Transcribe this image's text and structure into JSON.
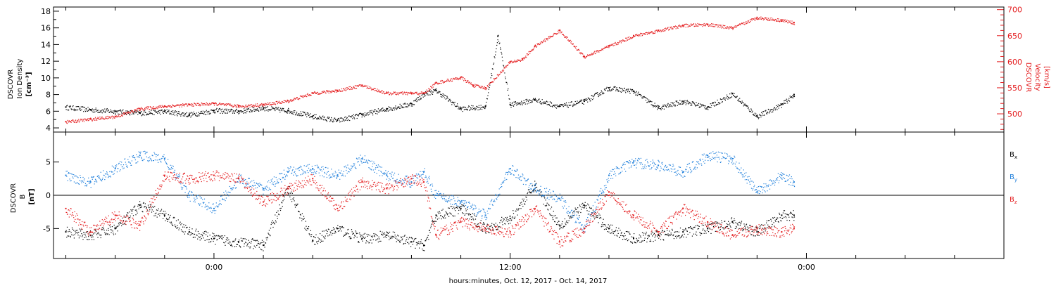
{
  "chart_data": [
    {
      "type": "scatter",
      "panel": "top",
      "left_axis": {
        "label_lines": [
          "DSCOVR",
          "Ion Density",
          "[cm⁻³]"
        ],
        "ticks": [
          4,
          6,
          8,
          10,
          12,
          14,
          16,
          18
        ],
        "tick_labels": [
          "4",
          "6",
          "8",
          "10",
          "12",
          "14",
          "16",
          "18"
        ],
        "ylim": [
          3.5,
          18.5
        ]
      },
      "right_axis": {
        "label_lines": [
          "DSCOVR",
          "Velocity",
          "[km/s]"
        ],
        "ticks": [
          500,
          550,
          600,
          650,
          700
        ],
        "tick_labels": [
          "500",
          "550",
          "600",
          "650",
          "700"
        ],
        "ylim": [
          465,
          705
        ],
        "color": "#e41a1c"
      },
      "series": [
        {
          "name": "",
          "color": "#000000",
          "axis": "left",
          "x": [
            -6,
            -5,
            -4,
            -3,
            -2,
            -1,
            0,
            1,
            2,
            3,
            4,
            5,
            6,
            7,
            8,
            8.5,
            9,
            10,
            11,
            11.5,
            12,
            13,
            14,
            15,
            16,
            17,
            18,
            19,
            20,
            21,
            22,
            23,
            23.5
          ],
          "y": [
            6.5,
            6.2,
            6.0,
            5.8,
            6.0,
            5.6,
            6.1,
            6.0,
            6.4,
            6.1,
            5.4,
            4.9,
            5.6,
            6.3,
            6.9,
            8.1,
            8.5,
            6.3,
            6.6,
            15.0,
            6.8,
            7.4,
            6.6,
            7.2,
            8.8,
            8.4,
            6.4,
            7.2,
            6.5,
            8.1,
            5.4,
            6.8,
            8.0
          ]
        },
        {
          "name": "",
          "color": "#e41a1c",
          "axis": "right",
          "x": [
            -6,
            -5,
            -4,
            -3,
            -2,
            -1,
            0,
            1,
            2,
            3,
            4,
            5,
            6,
            7,
            8,
            8.5,
            9,
            10,
            10.5,
            11,
            12,
            12.5,
            13,
            14,
            15,
            16,
            17,
            18,
            19,
            20,
            21,
            22,
            23,
            23.5
          ],
          "y": [
            485,
            490,
            495,
            510,
            515,
            518,
            520,
            515,
            518,
            525,
            540,
            545,
            555,
            540,
            540,
            540,
            560,
            570,
            555,
            550,
            600,
            605,
            630,
            660,
            610,
            630,
            650,
            660,
            670,
            672,
            665,
            685,
            680,
            675
          ]
        }
      ]
    },
    {
      "type": "scatter",
      "panel": "bottom",
      "left_axis": {
        "label_lines": [
          "DSCOVR",
          "B",
          "[nT]"
        ],
        "ticks": [
          -5,
          0,
          5
        ],
        "tick_labels": [
          "-5",
          "0",
          "5"
        ],
        "ylim": [
          -9.5,
          9.5
        ]
      },
      "zero_line": true,
      "legend": [
        {
          "label": "B",
          "sub": "x",
          "color": "#000000"
        },
        {
          "label": "B",
          "sub": "y",
          "color": "#1f7fdb"
        },
        {
          "label": "B",
          "sub": "z",
          "color": "#e41a1c"
        }
      ],
      "series": [
        {
          "name": "Bx",
          "color": "#000000",
          "x": [
            -6,
            -5,
            -4,
            -3,
            -2,
            -1,
            0,
            1,
            2,
            3,
            4,
            5,
            6,
            7,
            8,
            8.5,
            9,
            10,
            11,
            12,
            13,
            14,
            15,
            16,
            17,
            18,
            19,
            20,
            21,
            22,
            23,
            23.5
          ],
          "y": [
            -5.5,
            -6.0,
            -5.0,
            -1.5,
            -3.0,
            -5.5,
            -6.5,
            -7.0,
            -7.5,
            1.0,
            -6.8,
            -5.0,
            -6.5,
            -6.0,
            -7.0,
            -7.5,
            -3.0,
            -2.0,
            -5.0,
            -3.5,
            1.5,
            -4.5,
            -1.5,
            -5.0,
            -6.5,
            -6.0,
            -5.5,
            -5.0,
            -4.0,
            -5.5,
            -3.0,
            -3.0
          ]
        },
        {
          "name": "By",
          "color": "#1f7fdb",
          "x": [
            -6,
            -5,
            -4,
            -3,
            -2,
            -1,
            0,
            1,
            2,
            3,
            4,
            5,
            6,
            7,
            8,
            8.5,
            9,
            10,
            11,
            12,
            13,
            14,
            15,
            16,
            17,
            18,
            19,
            20,
            21,
            22,
            23,
            23.5
          ],
          "y": [
            3.0,
            2.0,
            4.0,
            6.0,
            5.5,
            0.0,
            -2.0,
            2.5,
            1.0,
            3.5,
            4.0,
            3.0,
            5.5,
            3.0,
            2.0,
            3.5,
            0.0,
            -1.0,
            -3.0,
            4.0,
            1.0,
            -0.5,
            -5.0,
            3.0,
            5.0,
            4.5,
            3.5,
            6.0,
            5.5,
            0.5,
            3.0,
            2.0
          ]
        },
        {
          "name": "Bz",
          "color": "#e41a1c",
          "x": [
            -6,
            -5,
            -4,
            -3,
            -2,
            -1,
            0,
            1,
            2,
            3,
            4,
            5,
            6,
            7,
            8,
            8.5,
            9,
            10,
            11,
            12,
            13,
            14,
            15,
            16,
            17,
            18,
            19,
            20,
            21,
            22,
            23,
            23.5
          ],
          "y": [
            -2.0,
            -5.5,
            -3.0,
            -4.5,
            3.0,
            2.5,
            3.0,
            2.5,
            -1.0,
            1.0,
            2.5,
            -2.0,
            2.0,
            1.0,
            2.5,
            2.0,
            -6.0,
            -4.0,
            -5.0,
            -5.5,
            -2.0,
            -7.0,
            -5.0,
            0.5,
            -3.0,
            -5.5,
            -2.0,
            -4.0,
            -6.0,
            -5.0,
            -5.5,
            -5.0
          ]
        }
      ]
    }
  ],
  "x_axis": {
    "xlim": [
      -6.5,
      32
    ],
    "major_ticks": [
      0,
      12,
      24
    ],
    "tick_labels": [
      "0:00",
      "12:00",
      "0:00"
    ],
    "title": "hours:minutes, Oct. 12, 2017 - Oct. 14, 2017"
  }
}
